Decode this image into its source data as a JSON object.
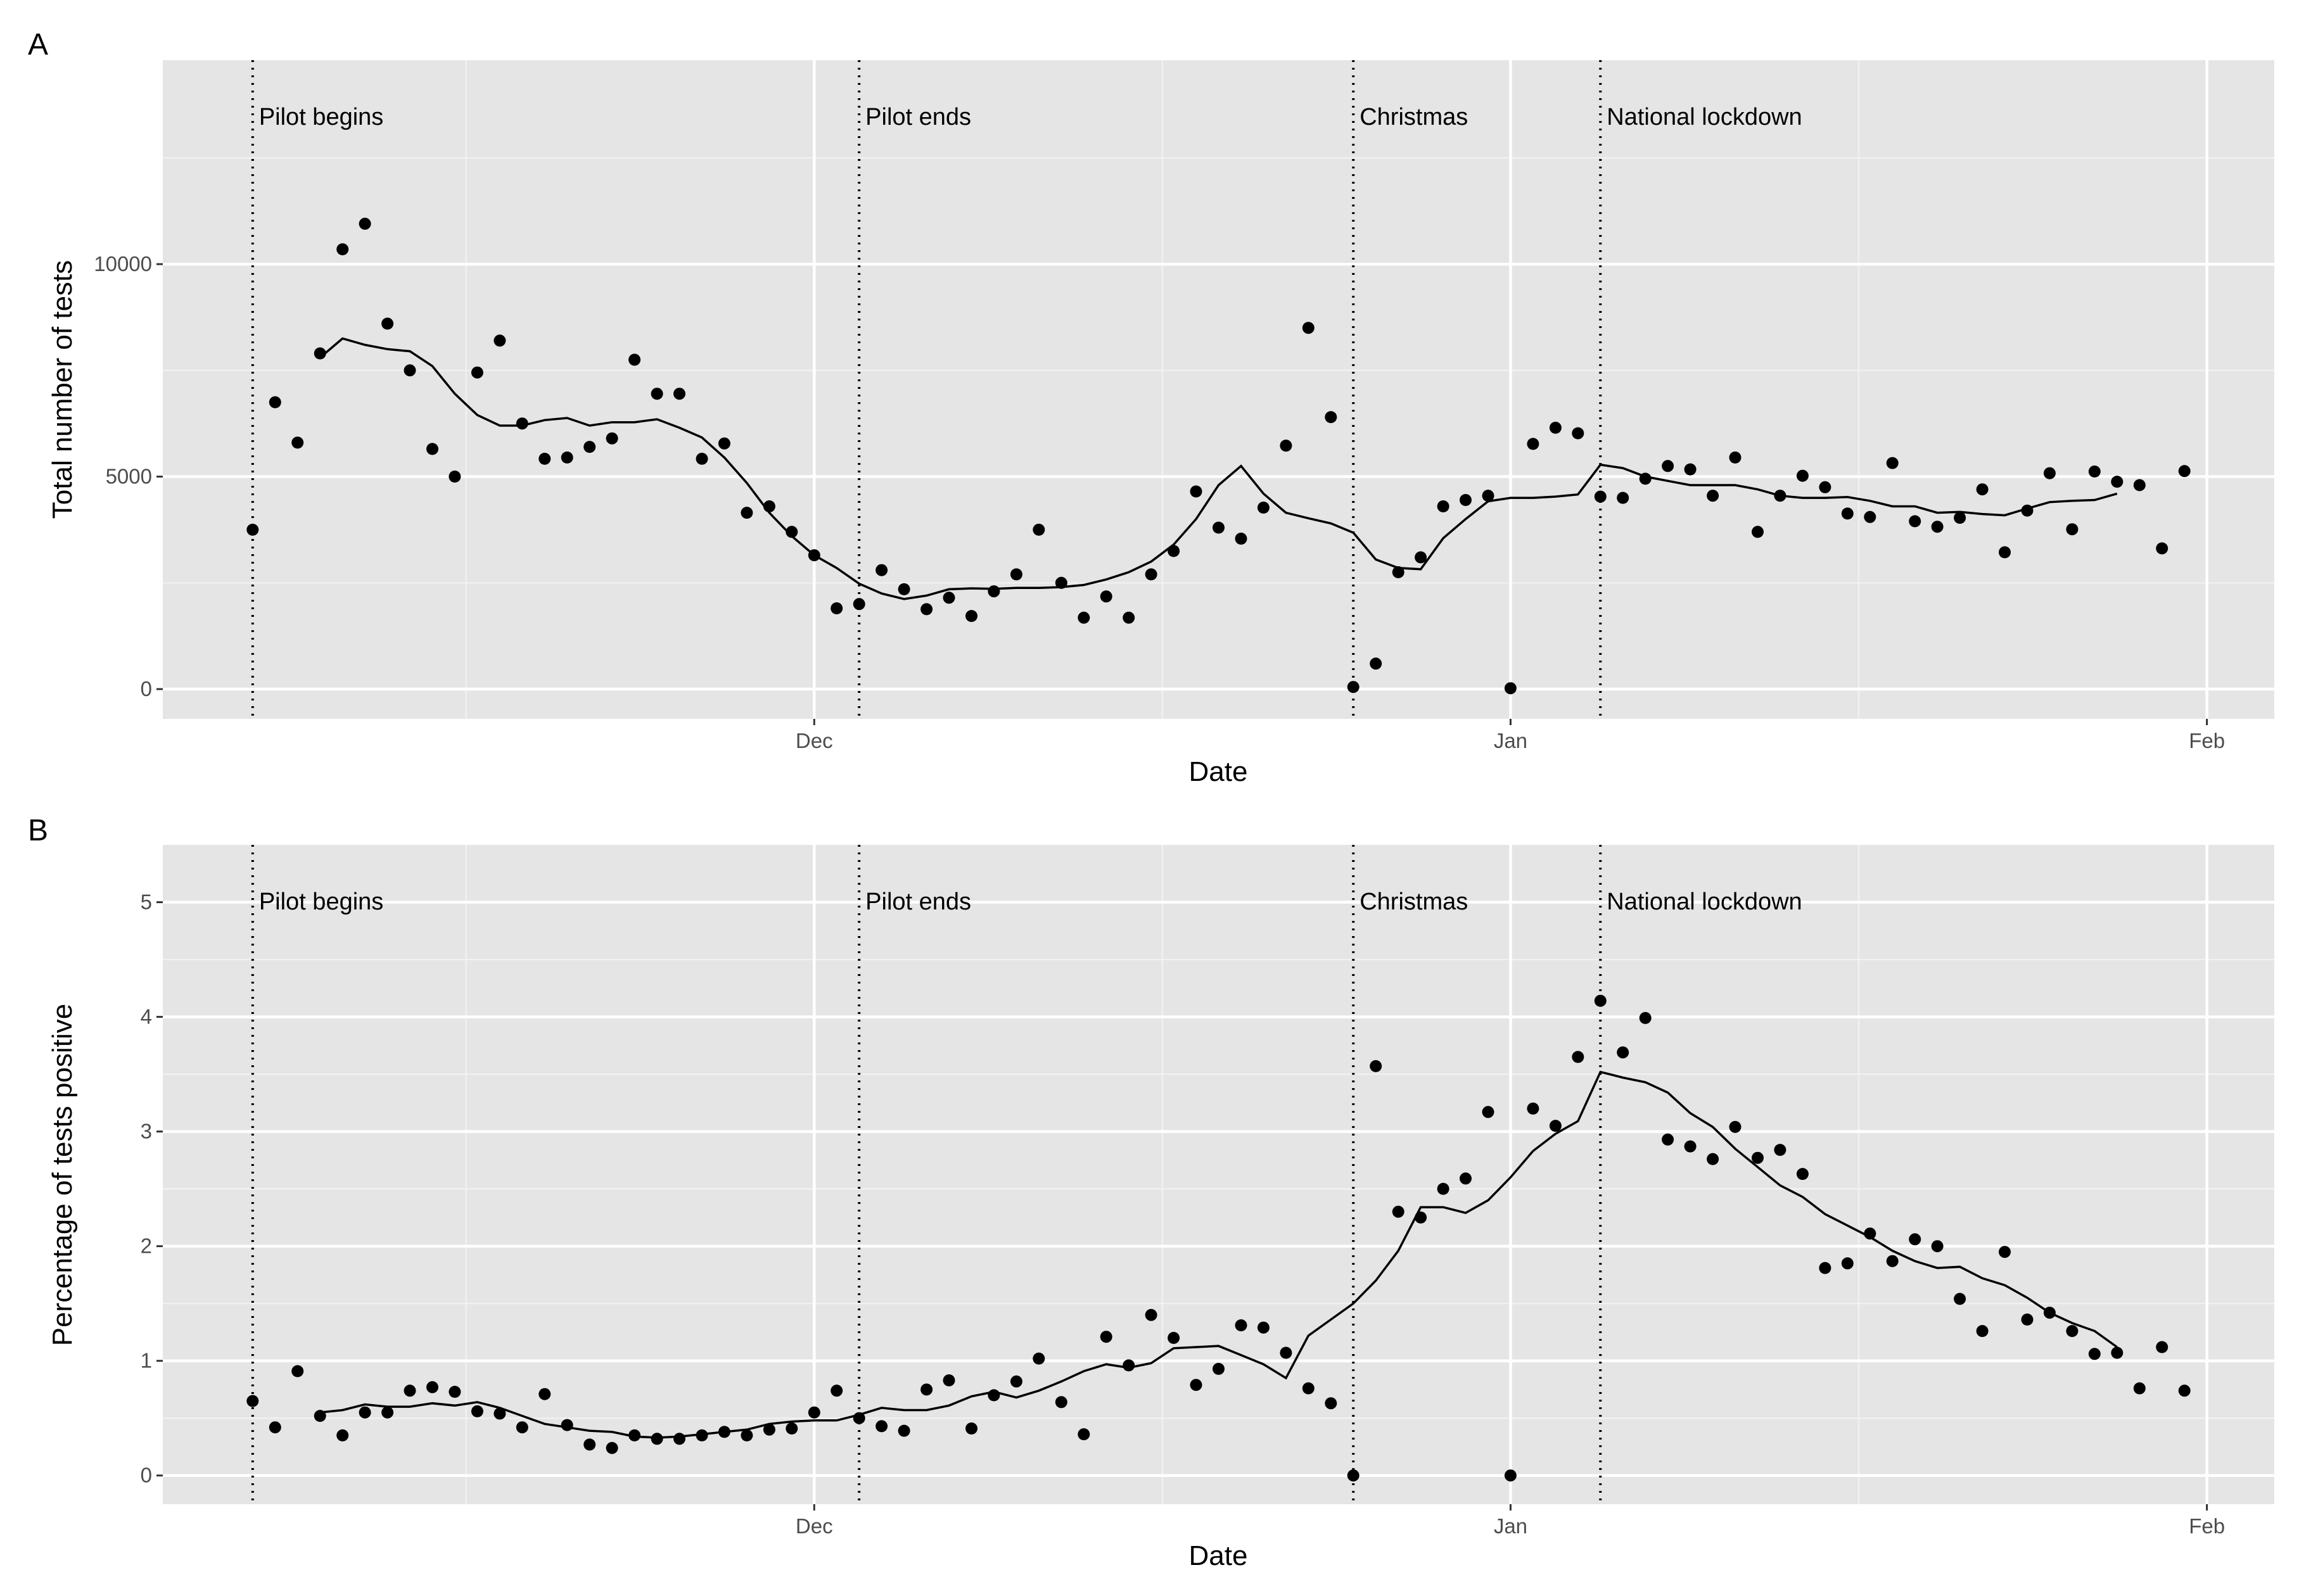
{
  "chart_data": [
    {
      "panel": "A",
      "type": "scatter",
      "xlabel": "Date",
      "ylabel": "Total number of tests",
      "x_ticks": [
        "Dec",
        "Jan",
        "Feb"
      ],
      "x_tick_dates": [
        "2020-12-01",
        "2021-01-01",
        "2021-02-01"
      ],
      "xlim": [
        "2020-11-02",
        "2021-02-04"
      ],
      "ylim": [
        -700,
        14800
      ],
      "y_ticks": [
        0,
        5000,
        10000
      ],
      "y_tick_labels": [
        "0",
        "5000",
        "10000"
      ],
      "grid": true,
      "events": [
        {
          "date": "2020-11-06",
          "label": "Pilot begins"
        },
        {
          "date": "2020-12-03",
          "label": "Pilot ends"
        },
        {
          "date": "2020-12-25",
          "label": "Christmas"
        },
        {
          "date": "2021-01-05",
          "label": "National lockdown"
        }
      ],
      "series": [
        {
          "kind": "points",
          "x": [
            "2020-11-06",
            "2020-11-07",
            "2020-11-08",
            "2020-11-09",
            "2020-11-10",
            "2020-11-11",
            "2020-11-12",
            "2020-11-13",
            "2020-11-14",
            "2020-11-15",
            "2020-11-16",
            "2020-11-17",
            "2020-11-18",
            "2020-11-19",
            "2020-11-20",
            "2020-11-21",
            "2020-11-22",
            "2020-11-23",
            "2020-11-24",
            "2020-11-25",
            "2020-11-26",
            "2020-11-27",
            "2020-11-28",
            "2020-11-29",
            "2020-11-30",
            "2020-12-01",
            "2020-12-02",
            "2020-12-03",
            "2020-12-04",
            "2020-12-05",
            "2020-12-06",
            "2020-12-07",
            "2020-12-08",
            "2020-12-09",
            "2020-12-10",
            "2020-12-11",
            "2020-12-12",
            "2020-12-13",
            "2020-12-14",
            "2020-12-15",
            "2020-12-16",
            "2020-12-17",
            "2020-12-18",
            "2020-12-19",
            "2020-12-20",
            "2020-12-21",
            "2020-12-22",
            "2020-12-23",
            "2020-12-24",
            "2020-12-25",
            "2020-12-26",
            "2020-12-27",
            "2020-12-28",
            "2020-12-29",
            "2020-12-30",
            "2020-12-31",
            "2021-01-01",
            "2021-01-02",
            "2021-01-03",
            "2021-01-04",
            "2021-01-05",
            "2021-01-06",
            "2021-01-07",
            "2021-01-08",
            "2021-01-09",
            "2021-01-10",
            "2021-01-11",
            "2021-01-12",
            "2021-01-13",
            "2021-01-14",
            "2021-01-15",
            "2021-01-16",
            "2021-01-17",
            "2021-01-18",
            "2021-01-19",
            "2021-01-20",
            "2021-01-21",
            "2021-01-22",
            "2021-01-23",
            "2021-01-24",
            "2021-01-25",
            "2021-01-26",
            "2021-01-27",
            "2021-01-28",
            "2021-01-29",
            "2021-01-30",
            "2021-01-31"
          ],
          "y": [
            3750,
            6750,
            5800,
            7900,
            10350,
            10950,
            8600,
            7500,
            5650,
            5000,
            7450,
            8200,
            6250,
            5420,
            5450,
            5700,
            5900,
            7750,
            6950,
            6950,
            5420,
            5780,
            4150,
            4300,
            3700,
            3150,
            1900,
            2000,
            2800,
            2350,
            1880,
            2150,
            1720,
            2300,
            2700,
            3750,
            2500,
            1680,
            2180,
            1680,
            2700,
            3250,
            4650,
            3800,
            3540,
            4270,
            5730,
            8500,
            6400,
            50,
            600,
            2750,
            3100,
            4300,
            4450,
            4550,
            20,
            5770,
            6150,
            6020,
            4530,
            4500,
            4950,
            5250,
            5170,
            4550,
            5450,
            3700,
            4550,
            5020,
            4750,
            4130,
            4050,
            5320,
            3950,
            3820,
            4030,
            4700,
            3220,
            4200,
            5080,
            3760,
            5120,
            4880,
            4800,
            3310,
            5130
          ]
        },
        {
          "kind": "line",
          "x": [
            "2020-11-09",
            "2020-11-10",
            "2020-11-11",
            "2020-11-12",
            "2020-11-13",
            "2020-11-14",
            "2020-11-15",
            "2020-11-16",
            "2020-11-17",
            "2020-11-18",
            "2020-11-19",
            "2020-11-20",
            "2020-11-21",
            "2020-11-22",
            "2020-11-23",
            "2020-11-24",
            "2020-11-25",
            "2020-11-26",
            "2020-11-27",
            "2020-11-28",
            "2020-11-29",
            "2020-11-30",
            "2020-12-01",
            "2020-12-02",
            "2020-12-03",
            "2020-12-04",
            "2020-12-05",
            "2020-12-06",
            "2020-12-07",
            "2020-12-08",
            "2020-12-09",
            "2020-12-10",
            "2020-12-11",
            "2020-12-12",
            "2020-12-13",
            "2020-12-14",
            "2020-12-15",
            "2020-12-16",
            "2020-12-17",
            "2020-12-18",
            "2020-12-19",
            "2020-12-20",
            "2020-12-21",
            "2020-12-22",
            "2020-12-23",
            "2020-12-24",
            "2020-12-25",
            "2020-12-26",
            "2020-12-27",
            "2020-12-28",
            "2020-12-29",
            "2020-12-30",
            "2020-12-31",
            "2021-01-01",
            "2021-01-02",
            "2021-01-03",
            "2021-01-04",
            "2021-01-05",
            "2021-01-06",
            "2021-01-07",
            "2021-01-08",
            "2021-01-09",
            "2021-01-10",
            "2021-01-11",
            "2021-01-12",
            "2021-01-13",
            "2021-01-14",
            "2021-01-15",
            "2021-01-16",
            "2021-01-17",
            "2021-01-18",
            "2021-01-19",
            "2021-01-20",
            "2021-01-21",
            "2021-01-22",
            "2021-01-23",
            "2021-01-24",
            "2021-01-25",
            "2021-01-26",
            "2021-01-27",
            "2021-01-28"
          ],
          "y": [
            7800,
            8250,
            8100,
            8000,
            7950,
            7600,
            6950,
            6450,
            6200,
            6200,
            6330,
            6380,
            6200,
            6280,
            6280,
            6350,
            6150,
            5920,
            5450,
            4850,
            4150,
            3600,
            3150,
            2850,
            2480,
            2250,
            2120,
            2200,
            2350,
            2370,
            2360,
            2380,
            2380,
            2400,
            2450,
            2580,
            2750,
            3000,
            3400,
            4000,
            4800,
            5250,
            4600,
            4150,
            4020,
            3900,
            3680,
            3050,
            2850,
            2820,
            3550,
            4000,
            4420,
            4500,
            4500,
            4530,
            4580,
            5280,
            5200,
            5000,
            4900,
            4800,
            4800,
            4800,
            4700,
            4550,
            4500,
            4500,
            4520,
            4430,
            4300,
            4300,
            4150,
            4170,
            4120,
            4090,
            4250,
            4400,
            4430,
            4450,
            4600
          ]
        }
      ]
    },
    {
      "panel": "B",
      "type": "scatter",
      "xlabel": "Date",
      "ylabel": "Percentage of tests positive",
      "x_ticks": [
        "Dec",
        "Jan",
        "Feb"
      ],
      "x_tick_dates": [
        "2020-12-01",
        "2021-01-01",
        "2021-02-01"
      ],
      "xlim": [
        "2020-11-02",
        "2021-02-04"
      ],
      "ylim": [
        -0.25,
        5.5
      ],
      "y_ticks": [
        0,
        1,
        2,
        3,
        4,
        5
      ],
      "y_tick_labels": [
        "0",
        "1",
        "2",
        "3",
        "4",
        "5"
      ],
      "grid": true,
      "events": [
        {
          "date": "2020-11-06",
          "label": "Pilot begins"
        },
        {
          "date": "2020-12-03",
          "label": "Pilot ends"
        },
        {
          "date": "2020-12-25",
          "label": "Christmas"
        },
        {
          "date": "2021-01-05",
          "label": "National lockdown"
        }
      ],
      "series": [
        {
          "kind": "points",
          "x": [
            "2020-11-06",
            "2020-11-07",
            "2020-11-08",
            "2020-11-09",
            "2020-11-10",
            "2020-11-11",
            "2020-11-12",
            "2020-11-13",
            "2020-11-14",
            "2020-11-15",
            "2020-11-16",
            "2020-11-17",
            "2020-11-18",
            "2020-11-19",
            "2020-11-20",
            "2020-11-21",
            "2020-11-22",
            "2020-11-23",
            "2020-11-24",
            "2020-11-25",
            "2020-11-26",
            "2020-11-27",
            "2020-11-28",
            "2020-11-29",
            "2020-11-30",
            "2020-12-01",
            "2020-12-02",
            "2020-12-03",
            "2020-12-04",
            "2020-12-05",
            "2020-12-06",
            "2020-12-07",
            "2020-12-08",
            "2020-12-09",
            "2020-12-10",
            "2020-12-11",
            "2020-12-12",
            "2020-12-13",
            "2020-12-14",
            "2020-12-15",
            "2020-12-16",
            "2020-12-17",
            "2020-12-18",
            "2020-12-19",
            "2020-12-20",
            "2020-12-21",
            "2020-12-22",
            "2020-12-23",
            "2020-12-24",
            "2020-12-25",
            "2020-12-26",
            "2020-12-27",
            "2020-12-28",
            "2020-12-29",
            "2020-12-30",
            "2020-12-31",
            "2021-01-01",
            "2021-01-02",
            "2021-01-03",
            "2021-01-04",
            "2021-01-05",
            "2021-01-06",
            "2021-01-07",
            "2021-01-08",
            "2021-01-09",
            "2021-01-10",
            "2021-01-11",
            "2021-01-12",
            "2021-01-13",
            "2021-01-14",
            "2021-01-15",
            "2021-01-16",
            "2021-01-17",
            "2021-01-18",
            "2021-01-19",
            "2021-01-20",
            "2021-01-21",
            "2021-01-22",
            "2021-01-23",
            "2021-01-24",
            "2021-01-25",
            "2021-01-26",
            "2021-01-27",
            "2021-01-28",
            "2021-01-29",
            "2021-01-30",
            "2021-01-31"
          ],
          "y": [
            0.65,
            0.42,
            0.91,
            0.52,
            0.35,
            0.55,
            0.55,
            0.74,
            0.77,
            0.73,
            0.56,
            0.54,
            0.42,
            0.71,
            0.44,
            0.27,
            0.24,
            0.35,
            0.32,
            0.32,
            0.35,
            0.38,
            0.35,
            0.4,
            0.41,
            0.55,
            0.74,
            0.5,
            0.43,
            0.39,
            0.75,
            0.83,
            0.41,
            0.7,
            0.82,
            1.02,
            0.64,
            0.36,
            1.21,
            0.96,
            1.4,
            1.2,
            0.79,
            0.93,
            1.31,
            1.29,
            1.07,
            0.76,
            0.63,
            0.0,
            3.57,
            2.3,
            2.25,
            2.5,
            2.59,
            3.17,
            0.0,
            3.2,
            3.05,
            3.65,
            4.14,
            3.69,
            3.99,
            2.93,
            2.87,
            2.76,
            3.04,
            2.77,
            2.84,
            2.63,
            1.81,
            1.85,
            2.11,
            1.87,
            2.06,
            2.0,
            1.54,
            1.26,
            1.95,
            1.36,
            1.42,
            1.26,
            1.06,
            1.07,
            0.76,
            1.12,
            0.74
          ]
        },
        {
          "kind": "line",
          "x": [
            "2020-11-09",
            "2020-11-10",
            "2020-11-11",
            "2020-11-12",
            "2020-11-13",
            "2020-11-14",
            "2020-11-15",
            "2020-11-16",
            "2020-11-17",
            "2020-11-18",
            "2020-11-19",
            "2020-11-20",
            "2020-11-21",
            "2020-11-22",
            "2020-11-23",
            "2020-11-24",
            "2020-11-25",
            "2020-11-26",
            "2020-11-27",
            "2020-11-28",
            "2020-11-29",
            "2020-11-30",
            "2020-12-01",
            "2020-12-02",
            "2020-12-03",
            "2020-12-04",
            "2020-12-05",
            "2020-12-06",
            "2020-12-07",
            "2020-12-08",
            "2020-12-09",
            "2020-12-10",
            "2020-12-11",
            "2020-12-12",
            "2020-12-13",
            "2020-12-14",
            "2020-12-15",
            "2020-12-16",
            "2020-12-17",
            "2020-12-18",
            "2020-12-19",
            "2020-12-20",
            "2020-12-21",
            "2020-12-22",
            "2020-12-23",
            "2020-12-24",
            "2020-12-25",
            "2020-12-26",
            "2020-12-27",
            "2020-12-28",
            "2020-12-29",
            "2020-12-30",
            "2020-12-31",
            "2021-01-01",
            "2021-01-02",
            "2021-01-03",
            "2021-01-04",
            "2021-01-05",
            "2021-01-06",
            "2021-01-07",
            "2021-01-08",
            "2021-01-09",
            "2021-01-10",
            "2021-01-11",
            "2021-01-12",
            "2021-01-13",
            "2021-01-14",
            "2021-01-15",
            "2021-01-16",
            "2021-01-17",
            "2021-01-18",
            "2021-01-19",
            "2021-01-20",
            "2021-01-21",
            "2021-01-22",
            "2021-01-23",
            "2021-01-24",
            "2021-01-25",
            "2021-01-26",
            "2021-01-27",
            "2021-01-28"
          ],
          "y": [
            0.55,
            0.57,
            0.62,
            0.6,
            0.6,
            0.63,
            0.61,
            0.64,
            0.59,
            0.52,
            0.45,
            0.42,
            0.39,
            0.38,
            0.34,
            0.33,
            0.34,
            0.36,
            0.38,
            0.4,
            0.45,
            0.47,
            0.48,
            0.48,
            0.53,
            0.59,
            0.57,
            0.57,
            0.61,
            0.69,
            0.73,
            0.68,
            0.74,
            0.82,
            0.91,
            0.97,
            0.94,
            0.98,
            1.11,
            1.12,
            1.13,
            1.05,
            0.97,
            0.85,
            1.22,
            1.36,
            1.5,
            1.7,
            1.96,
            2.34,
            2.34,
            2.29,
            2.4,
            2.6,
            2.83,
            2.98,
            3.09,
            3.52,
            3.47,
            3.43,
            3.34,
            3.16,
            3.04,
            2.85,
            2.69,
            2.53,
            2.43,
            2.28,
            2.18,
            2.08,
            1.96,
            1.87,
            1.81,
            1.82,
            1.72,
            1.66,
            1.55,
            1.42,
            1.33,
            1.26,
            1.12
          ]
        }
      ]
    }
  ]
}
